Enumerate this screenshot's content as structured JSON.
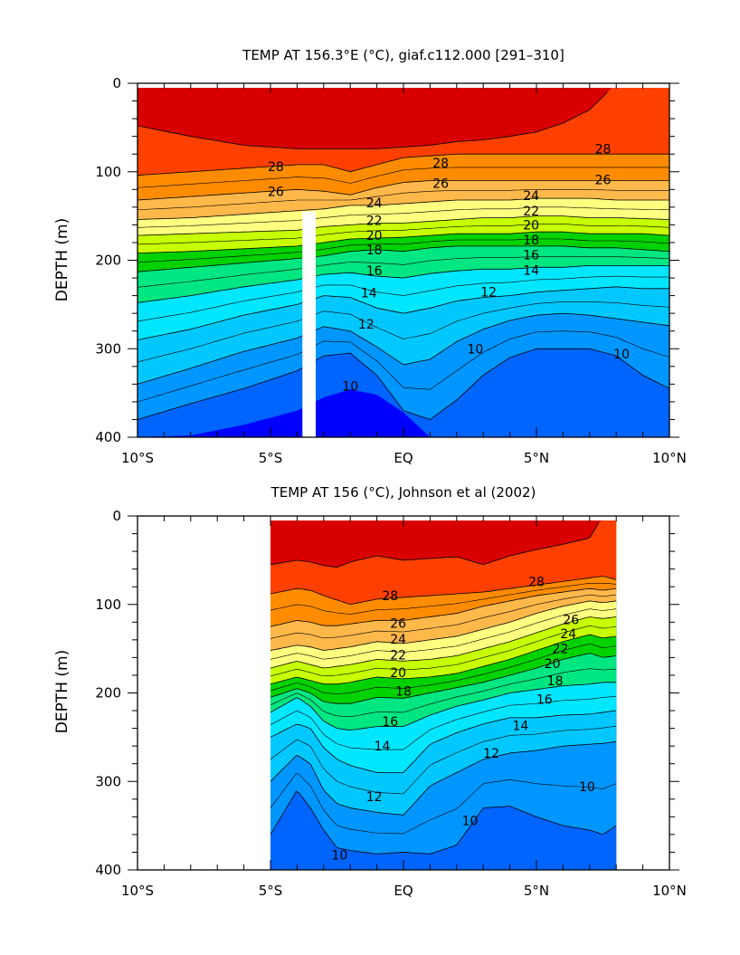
{
  "chart_data": [
    {
      "type": "heatmap",
      "title": "TEMP AT 156.3°E (°C), giaf.c112.000 [291–310]",
      "ylabel": "DEPTH (m)",
      "xlim": [
        -10,
        10
      ],
      "ylim": [
        0,
        400
      ],
      "x_tick_values": [
        -10,
        -5,
        0,
        5,
        10
      ],
      "x_tick_labels": [
        "10°S",
        "5°S",
        "EQ",
        "5°N",
        "10°N"
      ],
      "y_tick_values": [
        0,
        100,
        200,
        300,
        400
      ],
      "y_tick_labels": [
        "0",
        "100",
        "200",
        "300",
        "400"
      ],
      "contour_levels": [
        10,
        12,
        14,
        16,
        18,
        20,
        22,
        24,
        26,
        28
      ],
      "data_extent_x": [
        -10,
        10
      ],
      "masked_column": {
        "x": [
          -3.8,
          -3.3
        ],
        "depth": [
          145,
          400
        ]
      },
      "isotherm_depths": {
        "x": [
          -10,
          -8,
          -6,
          -4,
          -3,
          -2,
          -1,
          0,
          1,
          2,
          3,
          4,
          5,
          6,
          7,
          8,
          9,
          10
        ],
        "9": [
          400,
          398,
          386,
          370,
          355,
          346,
          352,
          372,
          400,
          400,
          400,
          400,
          400,
          400,
          400,
          400,
          400,
          400
        ],
        "10": [
          380,
          362,
          345,
          325,
          308,
          305,
          330,
          370,
          380,
          358,
          330,
          310,
          300,
          300,
          300,
          308,
          330,
          345
        ],
        "12": [
          340,
          322,
          303,
          288,
          275,
          280,
          298,
          318,
          312,
          292,
          278,
          268,
          262,
          260,
          262,
          266,
          270,
          274
        ],
        "14": [
          290,
          278,
          262,
          250,
          240,
          242,
          254,
          260,
          254,
          246,
          242,
          240,
          236,
          234,
          232,
          230,
          232,
          232
        ],
        "16": [
          248,
          240,
          230,
          222,
          216,
          214,
          218,
          220,
          215,
          212,
          210,
          210,
          208,
          208,
          206,
          206,
          206,
          206
        ],
        "18": [
          213,
          208,
          203,
          198,
          195,
          190,
          188,
          190,
          186,
          184,
          184,
          184,
          184,
          184,
          186,
          186,
          188,
          190
        ],
        "20": [
          192,
          190,
          187,
          184,
          180,
          176,
          175,
          174,
          172,
          170,
          170,
          170,
          168,
          168,
          170,
          170,
          170,
          172
        ],
        "22": [
          172,
          170,
          168,
          166,
          162,
          160,
          158,
          158,
          156,
          154,
          152,
          152,
          150,
          150,
          152,
          152,
          153,
          154
        ],
        "24": [
          154,
          152,
          148,
          144,
          142,
          138,
          138,
          136,
          134,
          132,
          132,
          132,
          130,
          130,
          130,
          132,
          132,
          132
        ],
        "26": [
          132,
          128,
          124,
          120,
          122,
          126,
          118,
          112,
          110,
          110,
          110,
          110,
          110,
          110,
          110,
          110,
          110,
          110
        ],
        "28": [
          104,
          100,
          96,
          92,
          92,
          100,
          92,
          84,
          82,
          80,
          80,
          80,
          80,
          80,
          80,
          80,
          80,
          80
        ],
        "29": [
          48,
          60,
          70,
          74,
          74,
          74,
          74,
          72,
          70,
          66,
          64,
          60,
          55,
          45,
          30,
          0,
          0,
          0
        ]
      },
      "contour_labels": [
        {
          "text": "28",
          "x": -4.8,
          "depth": 94
        },
        {
          "text": "26",
          "x": -4.8,
          "depth": 122
        },
        {
          "text": "28",
          "x": 1.4,
          "depth": 90
        },
        {
          "text": "26",
          "x": 1.4,
          "depth": 113
        },
        {
          "text": "28",
          "x": 7.5,
          "depth": 74
        },
        {
          "text": "26",
          "x": 7.5,
          "depth": 109
        },
        {
          "text": "24",
          "x": -1.1,
          "depth": 135
        },
        {
          "text": "22",
          "x": -1.1,
          "depth": 155
        },
        {
          "text": "20",
          "x": -1.1,
          "depth": 172
        },
        {
          "text": "18",
          "x": -1.1,
          "depth": 188
        },
        {
          "text": "16",
          "x": -1.1,
          "depth": 212
        },
        {
          "text": "14",
          "x": -1.3,
          "depth": 237
        },
        {
          "text": "12",
          "x": -1.4,
          "depth": 272
        },
        {
          "text": "24",
          "x": 4.8,
          "depth": 127
        },
        {
          "text": "22",
          "x": 4.8,
          "depth": 144
        },
        {
          "text": "20",
          "x": 4.8,
          "depth": 160
        },
        {
          "text": "18",
          "x": 4.8,
          "depth": 177
        },
        {
          "text": "16",
          "x": 4.8,
          "depth": 194
        },
        {
          "text": "14",
          "x": 4.8,
          "depth": 211
        },
        {
          "text": "12",
          "x": 3.2,
          "depth": 236
        },
        {
          "text": "10",
          "x": 2.7,
          "depth": 300
        },
        {
          "text": "10",
          "x": 8.2,
          "depth": 306
        },
        {
          "text": "10",
          "x": -2.0,
          "depth": 342
        }
      ]
    },
    {
      "type": "heatmap",
      "title": "TEMP AT 156 (°C), Johnson et al (2002)",
      "ylabel": "DEPTH (m)",
      "xlim": [
        -10,
        10
      ],
      "ylim": [
        0,
        400
      ],
      "x_tick_values": [
        -10,
        -5,
        0,
        5,
        10
      ],
      "x_tick_labels": [
        "10°S",
        "5°S",
        "EQ",
        "5°N",
        "10°N"
      ],
      "y_tick_values": [
        0,
        100,
        200,
        300,
        400
      ],
      "y_tick_labels": [
        "0",
        "100",
        "200",
        "300",
        "400"
      ],
      "contour_levels": [
        10,
        12,
        14,
        16,
        18,
        20,
        22,
        24,
        26,
        28
      ],
      "data_extent_x": [
        -5,
        8
      ],
      "isotherm_depths": {
        "x": [
          -5,
          -4,
          -3.5,
          -3,
          -2.5,
          -2,
          -1,
          0,
          1,
          2,
          3,
          4,
          5,
          6,
          7,
          7.5,
          8
        ],
        "9": [
          400,
          400,
          400,
          400,
          400,
          400,
          400,
          400,
          400,
          400,
          400,
          400,
          400,
          400,
          400,
          400,
          400
        ],
        "10": [
          360,
          310,
          330,
          355,
          375,
          378,
          382,
          380,
          382,
          372,
          330,
          328,
          340,
          350,
          355,
          360,
          350
        ],
        "12": [
          300,
          270,
          280,
          310,
          325,
          330,
          335,
          338,
          305,
          290,
          275,
          268,
          265,
          260,
          258,
          257,
          255
        ],
        "14": [
          250,
          235,
          240,
          262,
          275,
          282,
          290,
          290,
          258,
          245,
          235,
          228,
          228,
          225,
          224,
          222,
          220
        ],
        "16": [
          222,
          205,
          215,
          232,
          240,
          242,
          238,
          238,
          225,
          215,
          208,
          200,
          196,
          192,
          190,
          188,
          188
        ],
        "18": [
          205,
          195,
          200,
          210,
          212,
          212,
          205,
          206,
          200,
          194,
          188,
          180,
          172,
          162,
          155,
          160,
          158
        ],
        "20": [
          190,
          182,
          186,
          190,
          190,
          188,
          182,
          184,
          182,
          178,
          170,
          162,
          152,
          142,
          134,
          138,
          136
        ],
        "22": [
          172,
          164,
          168,
          172,
          170,
          168,
          162,
          164,
          162,
          158,
          150,
          142,
          132,
          122,
          114,
          116,
          114
        ],
        "24": [
          152,
          146,
          148,
          152,
          150,
          148,
          142,
          144,
          140,
          136,
          128,
          120,
          110,
          102,
          96,
          98,
          96
        ],
        "26": [
          125,
          118,
          120,
          124,
          124,
          122,
          118,
          118,
          114,
          110,
          102,
          96,
          90,
          86,
          82,
          84,
          82
        ],
        "28": [
          88,
          82,
          84,
          90,
          95,
          100,
          94,
          92,
          90,
          88,
          86,
          82,
          78,
          74,
          70,
          68,
          72
        ],
        "29": [
          55,
          50,
          52,
          56,
          58,
          52,
          45,
          50,
          48,
          46,
          55,
          45,
          38,
          32,
          25,
          0,
          0
        ]
      },
      "contour_labels": [
        {
          "text": "28",
          "x": -0.5,
          "depth": 90
        },
        {
          "text": "28",
          "x": 5.0,
          "depth": 74
        },
        {
          "text": "26",
          "x": -0.2,
          "depth": 121
        },
        {
          "text": "24",
          "x": -0.2,
          "depth": 139
        },
        {
          "text": "22",
          "x": -0.2,
          "depth": 157
        },
        {
          "text": "20",
          "x": -0.2,
          "depth": 177
        },
        {
          "text": "18",
          "x": 0.0,
          "depth": 198
        },
        {
          "text": "16",
          "x": -0.5,
          "depth": 232
        },
        {
          "text": "14",
          "x": -0.8,
          "depth": 260
        },
        {
          "text": "12",
          "x": -1.1,
          "depth": 317
        },
        {
          "text": "10",
          "x": -2.4,
          "depth": 383
        },
        {
          "text": "10",
          "x": 2.5,
          "depth": 344
        },
        {
          "text": "12",
          "x": 3.3,
          "depth": 268
        },
        {
          "text": "14",
          "x": 4.4,
          "depth": 237
        },
        {
          "text": "16",
          "x": 5.3,
          "depth": 207
        },
        {
          "text": "18",
          "x": 5.7,
          "depth": 186
        },
        {
          "text": "20",
          "x": 5.6,
          "depth": 167
        },
        {
          "text": "22",
          "x": 5.9,
          "depth": 150
        },
        {
          "text": "24",
          "x": 6.2,
          "depth": 133
        },
        {
          "text": "26",
          "x": 6.3,
          "depth": 117
        },
        {
          "text": "10",
          "x": 6.9,
          "depth": 306
        }
      ]
    }
  ],
  "fill_colors": {
    "deep": "#0000ff",
    "9": "#0040f0",
    "10": "#0064ff",
    "12": "#0096ff",
    "14": "#00c8ff",
    "16": "#00e6ff",
    "18": "#00e680",
    "20": "#00d200",
    "22": "#c8ff00",
    "24": "#ffff80",
    "26": "#ffb84a",
    "28": "#ff8c00",
    "29": "#ff4000",
    "top": "#d80000",
    "surface": "#ff0000"
  }
}
